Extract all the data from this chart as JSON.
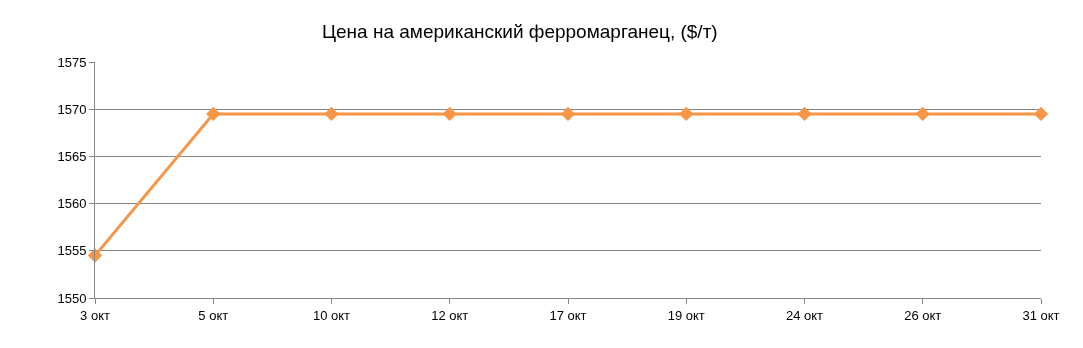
{
  "chart_data": {
    "type": "line",
    "title": "Цена на американский ферромарганец, ($/т)",
    "categories": [
      "3 окт",
      "5 окт",
      "10 окт",
      "12 окт",
      "17 окт",
      "19 окт",
      "24 окт",
      "26 окт",
      "31 окт"
    ],
    "series": [
      {
        "color": "#f79646",
        "values": [
          1554.5,
          1569.5,
          1569.5,
          1569.5,
          1569.5,
          1569.5,
          1569.5,
          1569.5,
          1569.5
        ]
      }
    ],
    "ylim": [
      1550,
      1575
    ],
    "yticks": [
      1550,
      1555,
      1560,
      1565,
      1570,
      1575
    ],
    "grid": "y",
    "marker": "diamond",
    "line_style": "solid"
  }
}
